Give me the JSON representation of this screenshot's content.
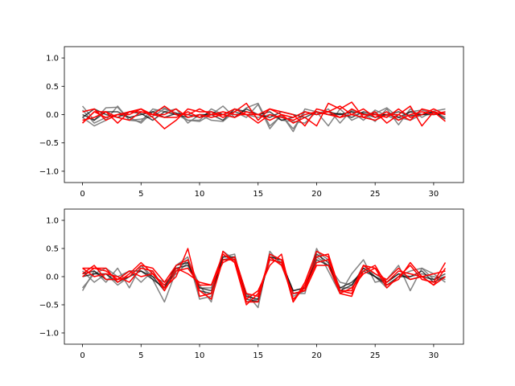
{
  "colors": {
    "gray": "#777777",
    "black": "#000000",
    "red": "#ff0000",
    "axes": "#000000"
  },
  "chart_data": [
    {
      "type": "line",
      "xlim": [
        -1.55,
        32.55
      ],
      "ylim": [
        -1.2,
        1.2
      ],
      "xticks": [
        0,
        5,
        10,
        15,
        20,
        25,
        30
      ],
      "yticks": [
        -1.0,
        -0.5,
        0.0,
        0.5,
        1.0
      ],
      "xtick_labels": [
        "0",
        "5",
        "10",
        "15",
        "20",
        "25",
        "30"
      ],
      "ytick_labels": [
        "−1.0",
        "−0.5",
        "0.0",
        "0.5",
        "1.0"
      ],
      "x": [
        0,
        1,
        2,
        3,
        4,
        5,
        6,
        7,
        8,
        9,
        10,
        11,
        12,
        13,
        14,
        15,
        16,
        17,
        18,
        19,
        20,
        21,
        22,
        23,
        24,
        25,
        26,
        27,
        28,
        29,
        30,
        31
      ],
      "series": [
        {
          "color": "gray",
          "values": [
            0.15,
            -0.1,
            0.12,
            0.13,
            -0.1,
            -0.08,
            -0.03,
            0.1,
            0.03,
            -0.1,
            -0.12,
            0.0,
            0.15,
            -0.05,
            0.12,
            0.2,
            -0.2,
            -0.02,
            -0.25,
            0.05,
            0.0,
            0.1,
            -0.15,
            0.08,
            0.02,
            -0.12,
            0.1,
            -0.18,
            0.1,
            -0.05,
            0.06,
            0.1
          ]
        },
        {
          "color": "gray",
          "values": [
            -0.05,
            -0.2,
            -0.1,
            0.15,
            -0.1,
            -0.12,
            0.1,
            0.05,
            0.1,
            -0.15,
            0.0,
            -0.1,
            -0.12,
            0.05,
            -0.05,
            0.18,
            -0.25,
            0.0,
            -0.3,
            0.1,
            0.05,
            -0.2,
            0.1,
            -0.1,
            0.0,
            0.02,
            0.12,
            -0.05,
            -0.1,
            0.0,
            0.05,
            -0.05
          ]
        },
        {
          "color": "gray",
          "values": [
            0.08,
            -0.15,
            -0.05,
            0.0,
            -0.05,
            -0.15,
            0.05,
            0.12,
            0.0,
            -0.1,
            -0.1,
            0.1,
            0.0,
            0.05,
            0.0,
            -0.05,
            0.0,
            -0.1,
            -0.12,
            -0.15,
            0.05,
            0.0,
            0.0,
            0.05,
            -0.1,
            0.08,
            -0.02,
            -0.1,
            0.05,
            0.08,
            0.02,
            0.05
          ]
        },
        {
          "color": "black",
          "values": [
            -0.05,
            0.1,
            0.0,
            -0.05,
            0.05,
            0.02,
            -0.1,
            0.05,
            0.0,
            -0.05,
            0.0,
            0.0,
            -0.1,
            0.1,
            0.05,
            0.0,
            0.05,
            -0.1,
            -0.05,
            0.05,
            0.0,
            0.05,
            0.0,
            0.05,
            0.02,
            -0.05,
            0.0,
            0.05,
            -0.02,
            0.0,
            0.05,
            -0.08
          ]
        },
        {
          "color": "black",
          "values": [
            0.0,
            -0.1,
            0.05,
            0.05,
            -0.05,
            0.0,
            0.05,
            -0.05,
            0.02,
            0.0,
            -0.05,
            0.05,
            0.0,
            -0.05,
            0.1,
            0.0,
            -0.05,
            0.05,
            0.0,
            -0.05,
            0.05,
            0.0,
            0.02,
            -0.05,
            0.05,
            0.0,
            0.0,
            -0.05,
            0.05,
            0.0,
            0.0,
            0.02
          ]
        },
        {
          "color": "red",
          "values": [
            -0.15,
            0.05,
            0.05,
            -0.15,
            0.05,
            0.1,
            -0.05,
            -0.25,
            -0.1,
            0.1,
            0.05,
            0.05,
            -0.05,
            0.05,
            0.2,
            -0.1,
            0.1,
            0.0,
            -0.15,
            -0.05,
            -0.2,
            0.2,
            0.1,
            0.22,
            -0.05,
            0.05,
            -0.15,
            0.0,
            0.15,
            -0.2,
            0.05,
            -0.12
          ]
        },
        {
          "color": "red",
          "values": [
            0.05,
            0.1,
            -0.1,
            0.0,
            0.0,
            0.1,
            0.0,
            0.15,
            0.0,
            0.0,
            0.1,
            0.0,
            0.05,
            0.0,
            0.0,
            0.0,
            0.1,
            0.05,
            0.0,
            -0.2,
            0.1,
            0.05,
            0.15,
            0.0,
            0.1,
            -0.05,
            0.05,
            -0.1,
            0.0,
            0.05,
            0.0,
            0.05
          ]
        },
        {
          "color": "red",
          "values": [
            -0.1,
            -0.05,
            0.05,
            -0.05,
            -0.1,
            0.05,
            0.0,
            0.0,
            0.1,
            -0.05,
            0.0,
            -0.05,
            0.0,
            0.1,
            0.0,
            -0.15,
            0.0,
            -0.05,
            -0.1,
            0.0,
            0.05,
            0.0,
            -0.05,
            0.1,
            0.0,
            0.0,
            -0.05,
            0.1,
            -0.05,
            0.0,
            0.1,
            0.0
          ]
        },
        {
          "color": "red",
          "values": [
            -0.15,
            0.05,
            -0.05,
            0.0,
            0.05,
            0.05,
            0.0,
            -0.05,
            -0.05,
            0.05,
            -0.05,
            0.0,
            0.0,
            -0.05,
            0.05,
            0.0,
            -0.1,
            0.0,
            -0.05,
            0.05,
            0.0,
            0.05,
            -0.05,
            0.0,
            -0.05,
            -0.1,
            0.0,
            0.0,
            -0.1,
            0.1,
            0.05,
            0.0
          ]
        }
      ]
    },
    {
      "type": "line",
      "xlim": [
        -1.55,
        32.55
      ],
      "ylim": [
        -1.2,
        1.2
      ],
      "xticks": [
        0,
        5,
        10,
        15,
        20,
        25,
        30
      ],
      "yticks": [
        -1.0,
        -0.5,
        0.0,
        0.5,
        1.0
      ],
      "xtick_labels": [
        "0",
        "5",
        "10",
        "15",
        "20",
        "25",
        "30"
      ],
      "ytick_labels": [
        "−1.0",
        "−0.5",
        "0.0",
        "0.5",
        "1.0"
      ],
      "x": [
        0,
        1,
        2,
        3,
        4,
        5,
        6,
        7,
        8,
        9,
        10,
        11,
        12,
        13,
        14,
        15,
        16,
        17,
        18,
        19,
        20,
        21,
        22,
        23,
        24,
        25,
        26,
        27,
        28,
        29,
        30,
        31
      ],
      "series": [
        {
          "color": "gray",
          "values": [
            -0.25,
            0.1,
            -0.1,
            0.15,
            -0.2,
            0.2,
            -0.05,
            -0.45,
            0.1,
            0.3,
            -0.15,
            -0.45,
            0.45,
            0.3,
            -0.3,
            -0.55,
            0.45,
            0.2,
            -0.35,
            -0.25,
            0.5,
            0.1,
            -0.3,
            0.05,
            0.3,
            -0.1,
            -0.05,
            0.2,
            -0.25,
            0.15,
            0.05,
            -0.1
          ]
        },
        {
          "color": "gray",
          "values": [
            -0.2,
            0.05,
            0.15,
            0.0,
            0.1,
            -0.1,
            0.1,
            -0.2,
            0.2,
            0.35,
            -0.4,
            -0.35,
            0.35,
            0.4,
            -0.45,
            -0.4,
            0.35,
            0.3,
            -0.3,
            -0.3,
            0.45,
            0.3,
            -0.2,
            -0.2,
            0.2,
            0.0,
            -0.2,
            0.0,
            0.1,
            0.15,
            -0.05,
            0.0
          ]
        },
        {
          "color": "gray",
          "values": [
            0.1,
            -0.1,
            0.05,
            -0.15,
            0.0,
            0.2,
            0.0,
            -0.1,
            0.05,
            0.25,
            -0.2,
            -0.2,
            0.3,
            0.35,
            -0.3,
            -0.45,
            0.4,
            0.25,
            -0.25,
            -0.2,
            0.35,
            0.2,
            -0.1,
            -0.15,
            0.15,
            0.05,
            -0.1,
            0.05,
            0.0,
            0.05,
            0.0,
            -0.05
          ]
        },
        {
          "color": "black",
          "values": [
            0.05,
            0.1,
            -0.05,
            -0.05,
            0.1,
            0.1,
            -0.05,
            -0.2,
            0.2,
            0.25,
            -0.25,
            -0.3,
            0.35,
            0.35,
            -0.4,
            -0.45,
            0.35,
            0.3,
            -0.3,
            -0.25,
            0.4,
            0.25,
            -0.25,
            -0.15,
            0.15,
            0.0,
            -0.15,
            0.0,
            0.0,
            0.1,
            -0.1,
            0.0
          ]
        },
        {
          "color": "black",
          "values": [
            0.0,
            0.05,
            0.05,
            -0.1,
            0.0,
            0.1,
            0.0,
            -0.25,
            0.15,
            0.2,
            -0.2,
            -0.25,
            0.3,
            0.3,
            -0.35,
            -0.4,
            0.3,
            0.25,
            -0.25,
            -0.2,
            0.3,
            0.2,
            -0.2,
            -0.1,
            0.1,
            0.0,
            -0.1,
            0.05,
            -0.05,
            0.0,
            -0.05,
            0.05
          ]
        },
        {
          "color": "red",
          "values": [
            0.15,
            0.15,
            0.15,
            -0.1,
            0.05,
            0.25,
            0.05,
            -0.2,
            0.0,
            0.5,
            -0.35,
            -0.3,
            0.45,
            0.25,
            -0.45,
            -0.45,
            0.4,
            0.3,
            -0.45,
            -0.1,
            0.45,
            0.35,
            -0.3,
            -0.35,
            0.2,
            0.15,
            -0.2,
            0.0,
            0.2,
            -0.05,
            -0.1,
            0.25
          ]
        },
        {
          "color": "red",
          "values": [
            0.15,
            0.0,
            0.05,
            0.0,
            -0.1,
            0.15,
            0.1,
            -0.25,
            0.1,
            0.15,
            -0.15,
            -0.15,
            0.4,
            0.25,
            -0.5,
            -0.3,
            0.3,
            0.25,
            -0.4,
            -0.2,
            0.25,
            0.3,
            -0.25,
            -0.3,
            0.1,
            0.2,
            -0.15,
            -0.05,
            0.25,
            0.0,
            -0.15,
            0.15
          ]
        },
        {
          "color": "red",
          "values": [
            0.05,
            0.2,
            -0.05,
            -0.05,
            0.0,
            0.2,
            0.15,
            -0.1,
            0.2,
            0.3,
            -0.25,
            -0.4,
            0.3,
            0.3,
            -0.4,
            -0.25,
            0.2,
            0.4,
            -0.45,
            -0.15,
            0.35,
            0.4,
            -0.25,
            -0.25,
            0.2,
            0.05,
            -0.05,
            0.15,
            -0.05,
            0.0,
            0.05,
            0.1
          ]
        },
        {
          "color": "red",
          "values": [
            0.0,
            0.15,
            0.1,
            -0.05,
            0.1,
            0.0,
            0.05,
            -0.15,
            0.15,
            0.05,
            -0.1,
            -0.15,
            0.25,
            0.35,
            -0.3,
            -0.35,
            0.35,
            0.2,
            -0.3,
            -0.25,
            0.2,
            0.2,
            -0.3,
            -0.2,
            0.05,
            0.15,
            -0.1,
            0.1,
            0.05,
            0.0,
            -0.15,
            0.0
          ]
        }
      ]
    }
  ]
}
